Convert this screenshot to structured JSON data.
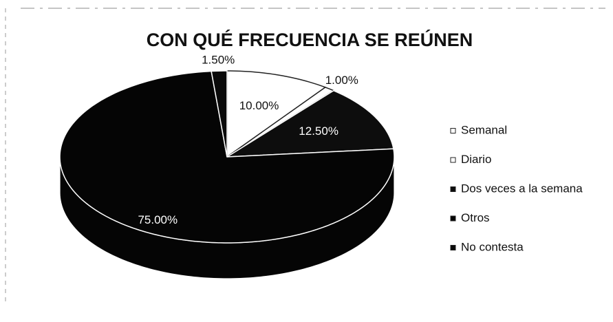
{
  "chart_data": {
    "type": "pie",
    "title": "CON QUÉ FRECUENCIA SE REÚNEN",
    "categories": [
      "Semanal",
      "Diario",
      "Dos veces a la semana",
      "Otros",
      "No contesta"
    ],
    "values": [
      10,
      1,
      12.5,
      75,
      1.5
    ],
    "value_labels": [
      "10.00%",
      "1.00%",
      "12.50%",
      "75.00%",
      "1.50%"
    ],
    "colors": [
      "#ffffff",
      "#ffffff",
      "#0d0d0d",
      "#050505",
      "#0a0a0a"
    ],
    "legend": "right"
  }
}
